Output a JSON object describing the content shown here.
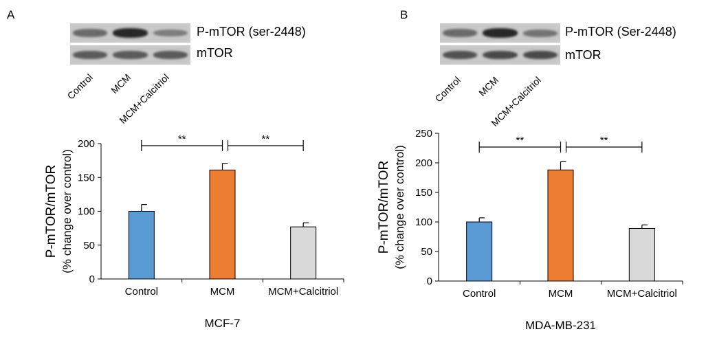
{
  "figure": {
    "panels": [
      {
        "letter": "A",
        "blot": {
          "rows": [
            {
              "label": "P-mTOR (ser-2448)",
              "bands": [
                0.55,
                0.95,
                0.45
              ]
            },
            {
              "label": "mTOR",
              "bands": [
                0.65,
                0.65,
                0.65
              ]
            }
          ],
          "lanes": [
            "Control",
            "MCM",
            "MCM+Calcitriol"
          ]
        },
        "cell_line": "MCF-7"
      },
      {
        "letter": "B",
        "blot": {
          "rows": [
            {
              "label": "P-mTOR (Ser-2448)",
              "bands": [
                0.55,
                0.95,
                0.5
              ]
            },
            {
              "label": "mTOR",
              "bands": [
                0.7,
                0.75,
                0.75
              ]
            }
          ],
          "lanes": [
            "Control",
            "MCM",
            "MCM+Calcitriol"
          ]
        },
        "cell_line": "MDA-MB-231"
      }
    ]
  },
  "chart_data": [
    {
      "type": "bar",
      "categories": [
        "Control",
        "MCM",
        "MCM+Calcitriol"
      ],
      "values": [
        100,
        161,
        77
      ],
      "errors": [
        10,
        10,
        6
      ],
      "colors": [
        "#5b9bd5",
        "#ed7d31",
        "#d9d9d9"
      ],
      "ylabel_line1": "P-mTOR/mTOR",
      "ylabel_line2": "(% change over control)",
      "xlabel": "MCF-7",
      "ylim": [
        0,
        200
      ],
      "yticks": [
        0,
        50,
        100,
        150,
        200
      ],
      "significance": [
        {
          "from": 0,
          "to": 1,
          "label": "**"
        },
        {
          "from": 1,
          "to": 2,
          "label": "**"
        }
      ]
    },
    {
      "type": "bar",
      "categories": [
        "Control",
        "MCM",
        "MCM+Calcitriol"
      ],
      "values": [
        100,
        188,
        89
      ],
      "errors": [
        7,
        14,
        6
      ],
      "colors": [
        "#5b9bd5",
        "#ed7d31",
        "#d9d9d9"
      ],
      "ylabel_line1": "P-mTOR/mTOR",
      "ylabel_line2": "(% change over control)",
      "xlabel": "MDA-MB-231",
      "ylim": [
        0,
        250
      ],
      "yticks": [
        0,
        50,
        100,
        150,
        200,
        250
      ],
      "significance": [
        {
          "from": 0,
          "to": 1,
          "label": "**"
        },
        {
          "from": 1,
          "to": 2,
          "label": "**"
        }
      ]
    }
  ]
}
